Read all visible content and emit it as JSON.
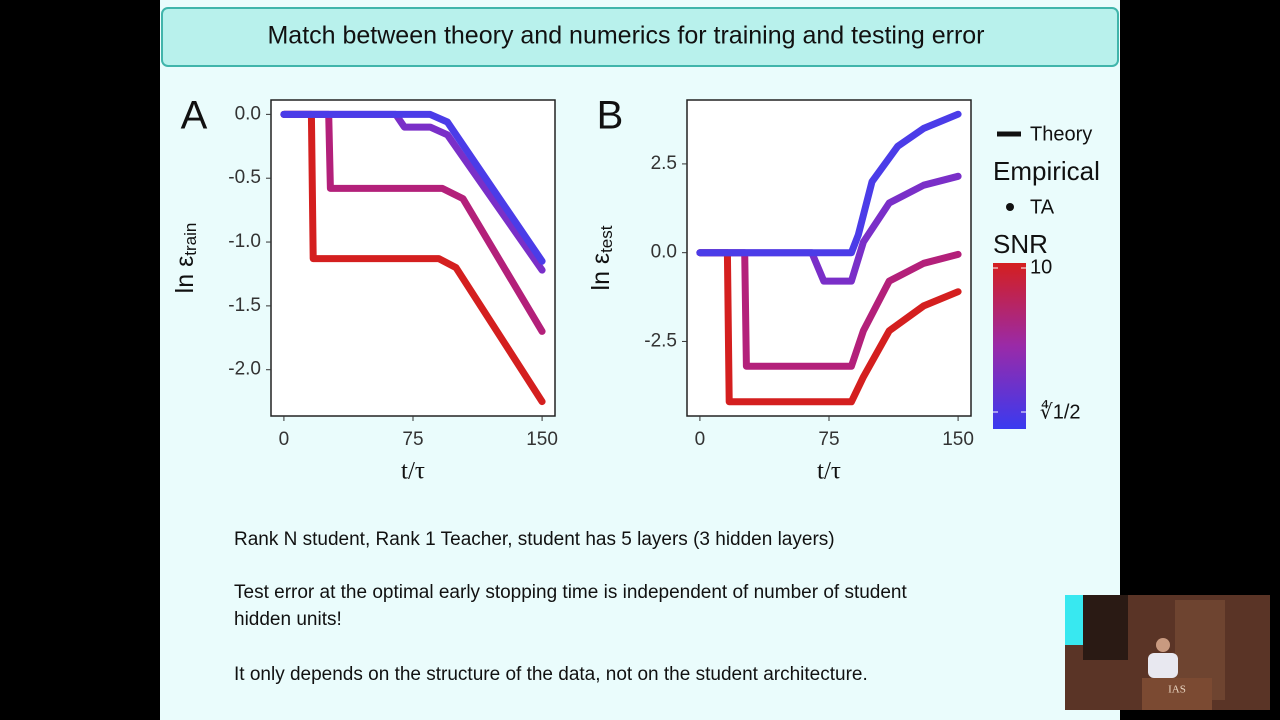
{
  "slide_title": "Match between theory and numerics for training and testing error",
  "chart_data": [
    {
      "type": "line",
      "panel": "A",
      "ylabel": {
        "text": "ln ε",
        "sub": "train"
      },
      "xlabel": "t/τ",
      "xlim": [
        -7.5,
        157.5
      ],
      "xticks": [
        0,
        75,
        150
      ],
      "ylim": [
        -2.3625,
        0.1125
      ],
      "yticks": [
        {
          "value": 0,
          "label": "0.0"
        },
        -0.5,
        {
          "value": -1,
          "label": "-1.0"
        },
        -1.5,
        {
          "value": -2,
          "label": "-2.0"
        }
      ],
      "series": [
        {
          "color": "#d41f1f",
          "x": [
            0,
            16,
            17,
            90,
            100,
            150
          ],
          "values": [
            0,
            0,
            -1.13,
            -1.13,
            -1.2,
            -2.25
          ]
        },
        {
          "color": "#b3207a",
          "x": [
            0,
            26,
            27,
            92,
            104,
            150
          ],
          "values": [
            0,
            0,
            -0.58,
            -0.58,
            -0.66,
            -1.7
          ]
        },
        {
          "color": "#7a2fc8",
          "x": [
            0,
            65,
            70,
            85,
            95,
            150
          ],
          "values": [
            0,
            0,
            -0.1,
            -0.1,
            -0.16,
            -1.22
          ]
        },
        {
          "color": "#4b3ce8",
          "x": [
            0,
            85,
            95,
            150
          ],
          "values": [
            0,
            0,
            -0.06,
            -1.15
          ]
        }
      ]
    },
    {
      "type": "line",
      "panel": "B",
      "ylabel": {
        "text": "ln ε",
        "sub": "test"
      },
      "xlabel": "t/τ",
      "xlim": [
        -7.5,
        157.5
      ],
      "xticks": [
        0,
        75,
        150
      ],
      "ylim": [
        -4.6,
        4.3
      ],
      "yticks": [
        -2.5,
        {
          "value": 0,
          "label": "0.0"
        },
        2.5
      ],
      "series": [
        {
          "color": "#d41f1f",
          "x": [
            0,
            16,
            17,
            88,
            95,
            110,
            130,
            150
          ],
          "values": [
            0,
            0,
            -4.2,
            -4.2,
            -3.5,
            -2.2,
            -1.5,
            -1.1
          ]
        },
        {
          "color": "#b3207a",
          "x": [
            0,
            26,
            27,
            88,
            95,
            110,
            130,
            150
          ],
          "values": [
            0,
            0,
            -3.2,
            -3.2,
            -2.2,
            -0.8,
            -0.3,
            -0.05
          ]
        },
        {
          "color": "#7a2fc8",
          "x": [
            0,
            65,
            72,
            88,
            95,
            110,
            130,
            150
          ],
          "values": [
            0,
            0,
            -0.8,
            -0.8,
            0.3,
            1.4,
            1.9,
            2.15
          ]
        },
        {
          "color": "#4b3ce8",
          "x": [
            0,
            88,
            92,
            100,
            115,
            130,
            150
          ],
          "values": [
            0,
            0,
            0.5,
            2.0,
            3.0,
            3.5,
            3.9
          ]
        }
      ]
    }
  ],
  "legend": {
    "theory": "Theory",
    "empirical_title": "Empirical",
    "empirical": "TA",
    "colorbar": {
      "title": "SNR",
      "top_label": "10",
      "bottom_label": "∜1/2",
      "top_color": "#d41f1f",
      "bottom_color": "#3a3af0"
    }
  },
  "notes": [
    [
      "Rank N student, Rank 1 Teacher, student has 5 layers (3 hidden layers)"
    ],
    [
      "Test error at the optimal early stopping time is independent of number of student",
      "hidden units!"
    ],
    [
      "It only depends on the structure of the data, not on the student architecture."
    ]
  ],
  "video": {
    "podium_text": "IAS"
  }
}
